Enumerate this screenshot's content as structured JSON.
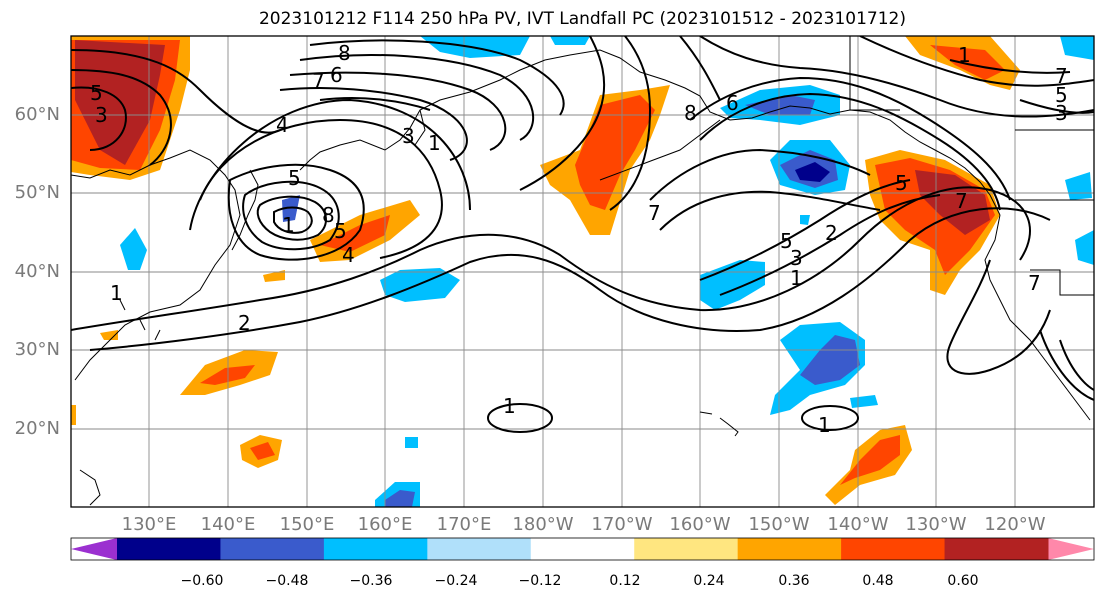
{
  "title": "2023101212 F114 250 hPa PV, IVT Landfall PC (2023101512 - 2023101712)",
  "lat_labels": [
    "60°N",
    "50°N",
    "40°N",
    "30°N",
    "20°N"
  ],
  "lon_labels": [
    "130°E",
    "140°E",
    "150°E",
    "160°E",
    "170°E",
    "180°W",
    "170°W",
    "160°W",
    "150°W",
    "140°W",
    "130°W",
    "120°W"
  ],
  "colorbar": {
    "colors": [
      "#9b30d0",
      "#00008b",
      "#3a5bcc",
      "#00bfff",
      "#b0e0fa",
      "#ffffff",
      "#ffe680",
      "#ffa500",
      "#ff4500",
      "#b22222",
      "#ff88aa"
    ],
    "ticks": [
      "−0.60",
      "−0.48",
      "−0.36",
      "−0.24",
      "−0.12",
      "0.12",
      "0.24",
      "0.36",
      "0.48",
      "0.60"
    ]
  },
  "contour_labels": [
    "3",
    "5",
    "8",
    "7",
    "6",
    "4",
    "5",
    "1",
    "3",
    "1",
    "5",
    "8",
    "2",
    "4",
    "1",
    "8",
    "7",
    "6",
    "5",
    "7",
    "5",
    "3",
    "1",
    "2",
    "1",
    "1",
    "3",
    "5",
    "7",
    "7",
    "1"
  ]
}
